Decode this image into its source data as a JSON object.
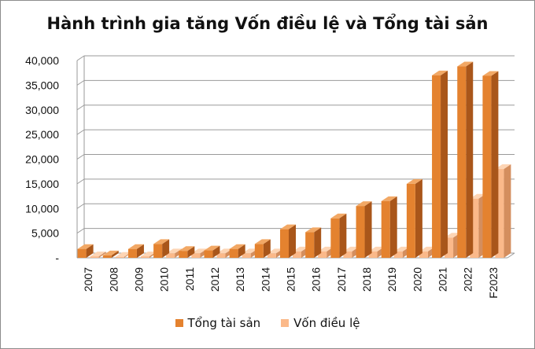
{
  "colors": {
    "total_assets_front": "#e4822f",
    "total_assets_side": "#a9561a",
    "total_assets_top": "#f2a865",
    "charter_capital_front": "#fbb98a",
    "charter_capital_side": "#d48e5e",
    "charter_capital_top": "#fdd5b5",
    "grid": "#9a9a9a"
  },
  "chart_data": {
    "type": "bar",
    "title": "Hành trình gia tăng Vốn điều lệ và Tổng tài sản",
    "categories": [
      "2007",
      "2008",
      "2009",
      "2010",
      "2011",
      "2012",
      "2013",
      "2014",
      "2015",
      "2016",
      "2017",
      "2018",
      "2019",
      "2020",
      "2021",
      "2022",
      "F2023"
    ],
    "series": [
      {
        "name": "Tổng tài sản",
        "values": [
          1800,
          500,
          1800,
          2800,
          1400,
          1500,
          1800,
          2800,
          5800,
          5200,
          8000,
          10500,
          11500,
          15000,
          37000,
          38800,
          36900
        ]
      },
      {
        "name": "Vốn điều lệ",
        "values": [
          300,
          200,
          300,
          900,
          900,
          900,
          900,
          900,
          1300,
          1300,
          1300,
          1300,
          1300,
          1300,
          4100,
          12000,
          18000
        ]
      }
    ],
    "ylim": [
      0,
      40000
    ],
    "yticks": [
      "-",
      "5,000",
      "10,000",
      "15,000",
      "20,000",
      "25,000",
      "30,000",
      "35,000",
      "40,000"
    ],
    "grid": true,
    "legend": "bottom"
  }
}
